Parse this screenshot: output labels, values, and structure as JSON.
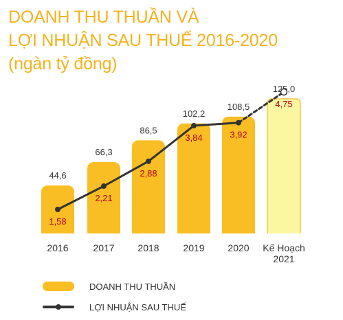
{
  "title": {
    "line1": "DOANH THU THUẦN VÀ",
    "line2": "LỢI NHUẬN SAU THUẾ 2016-2020",
    "line3": "(ngàn tỷ đồng)"
  },
  "colors": {
    "title": "#f5b21c",
    "bar": "#f9be23",
    "plan_bar_fill": "#fbf7a0",
    "plan_bar_border": "#f6c546",
    "line": "#333333",
    "profit_label": "#b4001e",
    "text": "#333333"
  },
  "chart_data": {
    "type": "bar",
    "categories": [
      "2016",
      "2017",
      "2018",
      "2019",
      "2020",
      "Kế Hoạch 2021"
    ],
    "category_lines": [
      [
        "2016"
      ],
      [
        "2017"
      ],
      [
        "2018"
      ],
      [
        "2019"
      ],
      [
        "2020"
      ],
      [
        "Kế Hoạch",
        "2021"
      ]
    ],
    "series": [
      {
        "name": "DOANH THU THUẦN",
        "type": "bar",
        "values": [
          44.6,
          66.3,
          86.5,
          102.2,
          108.5,
          125.0
        ],
        "labels": [
          "44,6",
          "66,3",
          "86,5",
          "102,2",
          "108,5",
          "125,0"
        ],
        "planned": [
          false,
          false,
          false,
          false,
          false,
          true
        ]
      },
      {
        "name": "LỢI NHUẬN SAU THUẾ",
        "type": "line",
        "values": [
          1.58,
          2.21,
          2.88,
          3.84,
          3.92,
          4.75
        ],
        "labels": [
          "1,58",
          "2,21",
          "2,88",
          "3,84",
          "3,92",
          "4,75"
        ],
        "planned": [
          false,
          false,
          false,
          false,
          false,
          true
        ]
      }
    ],
    "grid": false,
    "legend": "bottom-left"
  },
  "legend": {
    "revenue": "DOANH THU THUẦN",
    "profit": "LỢI NHUẬN SAU THUẾ"
  }
}
